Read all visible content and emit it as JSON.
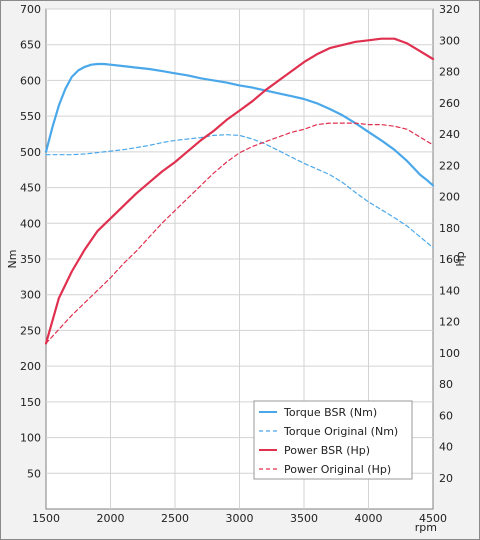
{
  "chart_data": {
    "type": "line",
    "x_label": "rpm",
    "y_left_label": "Nm",
    "y_right_label": "Hp",
    "x_range": [
      1500,
      4500
    ],
    "x_ticks": [
      1500,
      2000,
      2500,
      3000,
      3500,
      4000,
      4500
    ],
    "y_left_range": [
      0,
      700
    ],
    "y_left_ticks": [
      50,
      100,
      150,
      200,
      250,
      300,
      350,
      400,
      450,
      500,
      550,
      600,
      650,
      700
    ],
    "y_right_range": [
      0,
      320
    ],
    "y_right_ticks": [
      20,
      40,
      60,
      80,
      100,
      120,
      140,
      160,
      180,
      200,
      220,
      240,
      260,
      280,
      300,
      320
    ],
    "grid": true,
    "legend_position": "bottom-right",
    "series": [
      {
        "name": "Torque BSR (Nm)",
        "axis": "left",
        "style": "solid",
        "color": "#4aa8ea",
        "x": [
          1500,
          1550,
          1600,
          1650,
          1700,
          1750,
          1800,
          1850,
          1900,
          1950,
          2000,
          2100,
          2200,
          2300,
          2400,
          2500,
          2600,
          2700,
          2800,
          2900,
          3000,
          3100,
          3200,
          3300,
          3400,
          3500,
          3600,
          3700,
          3800,
          3900,
          4000,
          4100,
          4200,
          4300,
          4400,
          4450,
          4500
        ],
        "y": [
          500,
          535,
          565,
          588,
          605,
          614,
          619,
          622,
          623,
          623,
          622,
          620,
          618,
          616,
          613,
          610,
          607,
          603,
          600,
          597,
          593,
          590,
          586,
          582,
          578,
          574,
          568,
          560,
          551,
          540,
          528,
          516,
          503,
          487,
          468,
          461,
          453
        ]
      },
      {
        "name": "Torque Original (Nm)",
        "axis": "left",
        "style": "dashed",
        "color": "#4aa8ea",
        "x": [
          1500,
          1600,
          1700,
          1800,
          1900,
          2000,
          2100,
          2200,
          2300,
          2400,
          2500,
          2600,
          2700,
          2800,
          2900,
          3000,
          3100,
          3200,
          3300,
          3400,
          3500,
          3600,
          3700,
          3800,
          3900,
          4000,
          4100,
          4200,
          4300,
          4400,
          4500
        ],
        "y": [
          496,
          496,
          496,
          497,
          499,
          501,
          503,
          506,
          509,
          513,
          516,
          518,
          520,
          523,
          524,
          523,
          518,
          511,
          502,
          493,
          484,
          476,
          468,
          457,
          443,
          430,
          419,
          408,
          396,
          381,
          366
        ]
      },
      {
        "name": "Power BSR (Hp)",
        "axis": "right",
        "style": "solid",
        "color": "#e0304f",
        "x": [
          1500,
          1600,
          1700,
          1800,
          1900,
          2000,
          2100,
          2200,
          2300,
          2400,
          2500,
          2600,
          2700,
          2800,
          2900,
          3000,
          3100,
          3200,
          3300,
          3400,
          3500,
          3600,
          3700,
          3800,
          3900,
          4000,
          4100,
          4150,
          4200,
          4300,
          4400,
          4500
        ],
        "y": [
          106,
          135,
          152,
          166,
          178,
          186,
          194,
          202,
          209,
          216,
          222,
          229,
          236,
          242,
          249,
          255,
          261,
          268,
          274,
          280,
          286,
          291,
          295,
          297,
          299,
          300,
          301,
          301,
          301,
          298,
          293,
          288
        ]
      },
      {
        "name": "Power Original (Hp)",
        "axis": "right",
        "style": "dashed",
        "color": "#e0304f",
        "x": [
          1500,
          1600,
          1700,
          1800,
          1900,
          2000,
          2100,
          2200,
          2300,
          2400,
          2500,
          2600,
          2700,
          2800,
          2900,
          3000,
          3100,
          3200,
          3300,
          3400,
          3500,
          3600,
          3700,
          3800,
          3900,
          4000,
          4100,
          4200,
          4300,
          4400,
          4500
        ],
        "y": [
          106,
          115,
          124,
          132,
          140,
          148,
          157,
          165,
          174,
          183,
          191,
          199,
          207,
          215,
          222,
          228,
          232,
          235,
          238,
          241,
          243,
          246,
          247,
          247,
          247,
          246,
          246,
          245,
          243,
          238,
          233
        ]
      }
    ]
  }
}
